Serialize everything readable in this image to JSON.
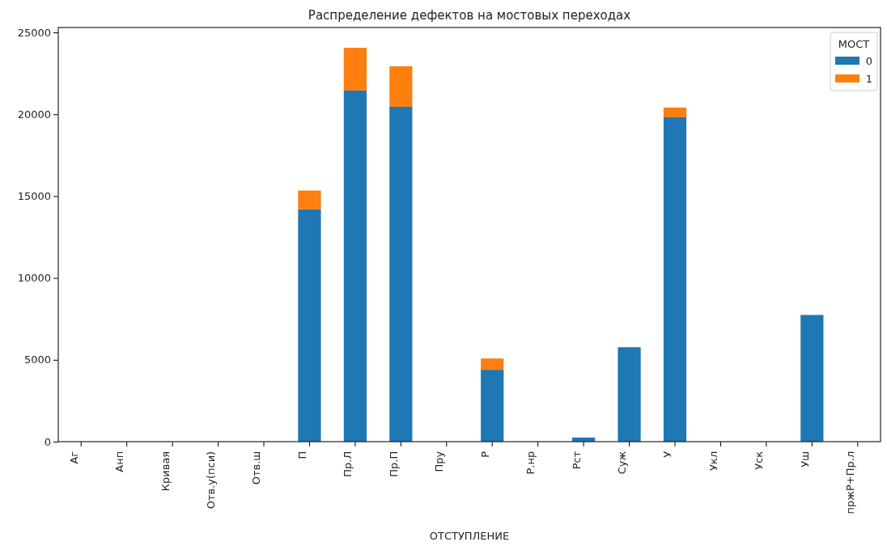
{
  "chart_data": {
    "type": "bar",
    "title": "Распределение дефектов на мостовых переходах",
    "xlabel": "ОТСТУПЛЕНИЕ",
    "legend_title": "МОСТ",
    "categories": [
      "Аг",
      "Анп",
      "Кривая",
      "Отв.у(пси)",
      "Отв.ш",
      "П",
      "Пр.Л",
      "Пр.П",
      "Пру",
      "Р",
      "Р.нр",
      "Рст",
      "Суж",
      "У",
      "Укл",
      "Уск",
      "Уш",
      "пржР+Пр.л"
    ],
    "series": [
      {
        "name": "0",
        "color": "#1f77b4",
        "values": [
          0,
          0,
          0,
          0,
          0,
          14200,
          21450,
          20460,
          0,
          4390,
          0,
          250,
          5770,
          19820,
          0,
          0,
          7740,
          0
        ]
      },
      {
        "name": "1",
        "color": "#ff7f0e",
        "values": [
          0,
          0,
          0,
          0,
          0,
          1140,
          2610,
          2470,
          0,
          690,
          0,
          0,
          0,
          590,
          0,
          0,
          0,
          0
        ]
      }
    ],
    "stacked": true,
    "ylim": [
      0,
      25300
    ],
    "yticks": [
      0,
      5000,
      10000,
      15000,
      20000,
      25000
    ],
    "grid": false,
    "legend": "top right"
  }
}
